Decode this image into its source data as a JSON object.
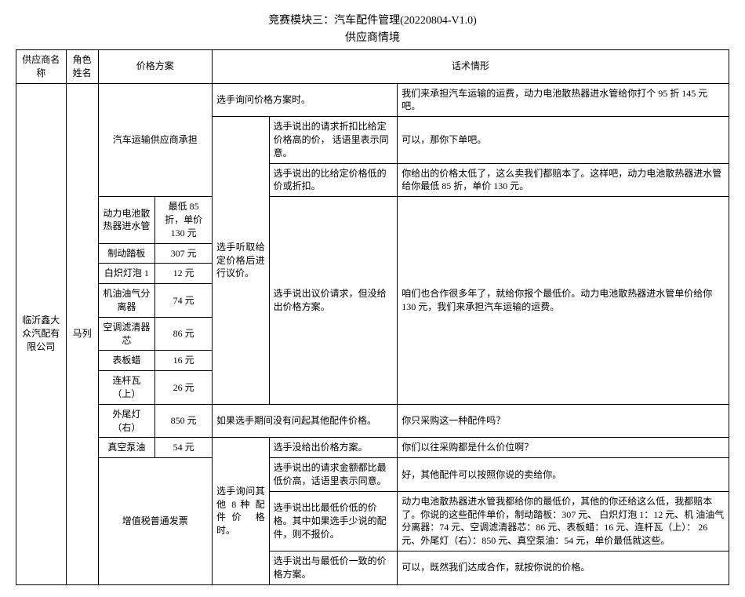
{
  "header": {
    "title": "竞赛模块三：汽车配件管理(20220804-V1.0)",
    "subtitle": "供应商情境"
  },
  "thead": {
    "supplier_name": "供应商名称",
    "role_name": "角色姓名",
    "price_plan": "价格方案",
    "script": "话术情形"
  },
  "supplier": "临沂鑫大众汽配有限公司",
  "role": "马列",
  "plan_a": "汽车运输供应商承担",
  "r1_left": "选手询问价格方案时。",
  "r1_right": "我们来承担汽车运输的运费，动力电池散热器进水管给你打个 95 折 145 元 吧。",
  "r2_mid": "选手说出的请求折扣比给定价格高的价， 话语里表示同意。",
  "r2_right": "可以，那你下单吧。",
  "r3_mid": "选手说出的比给定价格低的价或折扣。",
  "r3_right": "你给出的价格太低了，这么卖我们都赔本了。这样吧，动力电池散热器进水管给你最低 85 折，单价 130 元。",
  "parts": {
    "p1n": "动力电池散热器进水管",
    "p1v": "最低 85 折，单价 130 元",
    "p2n": "制动踏板",
    "p2v": "307 元",
    "p3n": "白炽灯泡 1",
    "p3v": "12 元",
    "p4n": "机油油气分离器",
    "p4v": "74 元",
    "p5n": "空调滤清器芯",
    "p5v": "86 元",
    "p6n": "表板蜡",
    "p6v": "16 元",
    "p7n": "连杆瓦（上）",
    "p7v": "26 元",
    "p8n": "外尾灯（右）",
    "p8v": "850 元",
    "p9n": "真空泵油",
    "p9v": "54 元"
  },
  "listen_label": "选手听取给定价格后进行议价。",
  "nego_mid": "选手说出议价请求，但没给出价格方案。",
  "nego_right": "咱们也合作很多年了，就给你报个最低价。动力电池散热器进水管单价给你 130 元，我们来承担汽车运输的运费。",
  "r8_left": "如果选手期间没有问起其他配件价格。",
  "r8_right": "你只采购这一种配件吗？",
  "r9_mid": "选手没给出价格方案。",
  "r9_right": "你们以往采购都是什么价位啊？",
  "plan_b": "增值税普通发票",
  "ask_label": "选手询问其他 8 种 配件价 格时。",
  "r10_mid": "选手说出的请求金额都比最低价高，话语里表示同意。",
  "r10_right": "好，其他配件可以按照你说的卖给你。",
  "r11_mid": "选手说出比最低价低的价格。其中如果选手少说的配件，则不报价。",
  "r11_right": "动力电池散热器进水管我都给你的最低价，其他的你还给这么低，我都赔本了。你说的这些配件单价，制动踏板：307 元、 白炽灯泡 1：12 元、机 油油气分离器：74 元、空调滤清器芯：86 元、表板蜡：16 元、连杆瓦（上）： 26 元、外尾灯（右）：850 元、真空泵油：54 元，单价最低就这些。",
  "r12_mid": "选手说出与最低价一致的价格方案。",
  "r12_right": "可以，既然我们达成合作，就按你说的价格。"
}
